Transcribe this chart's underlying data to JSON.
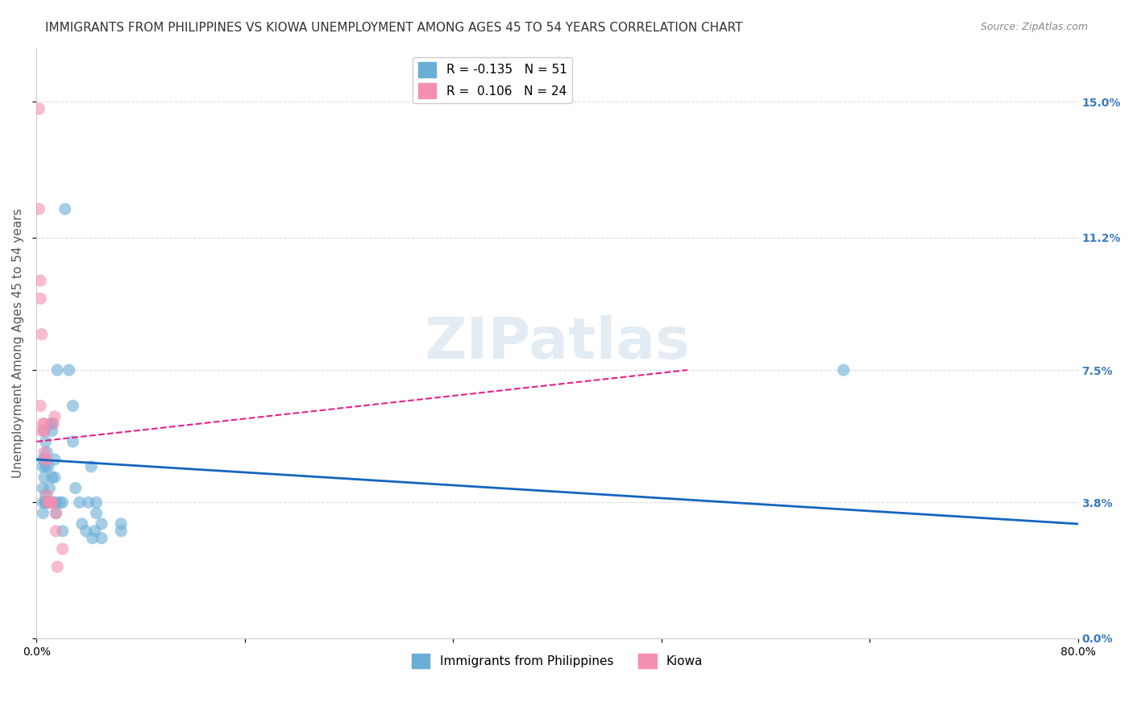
{
  "title": "IMMIGRANTS FROM PHILIPPINES VS KIOWA UNEMPLOYMENT AMONG AGES 45 TO 54 YEARS CORRELATION CHART",
  "source": "Source: ZipAtlas.com",
  "ylabel": "Unemployment Among Ages 45 to 54 years",
  "xlim": [
    0.0,
    0.8
  ],
  "ylim": [
    0.0,
    0.165
  ],
  "yticks": [
    0.0,
    0.038,
    0.075,
    0.112,
    0.15
  ],
  "ytick_labels": [
    "0.0%",
    "3.8%",
    "7.5%",
    "11.2%",
    "15.0%"
  ],
  "xticks": [
    0.0,
    0.16,
    0.32,
    0.48,
    0.64,
    0.8
  ],
  "xtick_labels": [
    "0.0%",
    "",
    "",
    "",
    "",
    "80.0%"
  ],
  "blue_scatter": [
    [
      0.005,
      0.048
    ],
    [
      0.005,
      0.038
    ],
    [
      0.005,
      0.05
    ],
    [
      0.005,
      0.042
    ],
    [
      0.005,
      0.035
    ],
    [
      0.006,
      0.058
    ],
    [
      0.006,
      0.05
    ],
    [
      0.006,
      0.045
    ],
    [
      0.007,
      0.055
    ],
    [
      0.007,
      0.048
    ],
    [
      0.007,
      0.04
    ],
    [
      0.007,
      0.038
    ],
    [
      0.007,
      0.038
    ],
    [
      0.008,
      0.052
    ],
    [
      0.008,
      0.038
    ],
    [
      0.009,
      0.048
    ],
    [
      0.009,
      0.038
    ],
    [
      0.01,
      0.042
    ],
    [
      0.01,
      0.038
    ],
    [
      0.011,
      0.06
    ],
    [
      0.012,
      0.045
    ],
    [
      0.012,
      0.06
    ],
    [
      0.012,
      0.058
    ],
    [
      0.013,
      0.038
    ],
    [
      0.014,
      0.045
    ],
    [
      0.014,
      0.05
    ],
    [
      0.015,
      0.038
    ],
    [
      0.015,
      0.035
    ],
    [
      0.016,
      0.075
    ],
    [
      0.018,
      0.038
    ],
    [
      0.02,
      0.03
    ],
    [
      0.02,
      0.038
    ],
    [
      0.022,
      0.12
    ],
    [
      0.025,
      0.075
    ],
    [
      0.028,
      0.065
    ],
    [
      0.028,
      0.055
    ],
    [
      0.03,
      0.042
    ],
    [
      0.033,
      0.038
    ],
    [
      0.035,
      0.032
    ],
    [
      0.038,
      0.03
    ],
    [
      0.04,
      0.038
    ],
    [
      0.042,
      0.048
    ],
    [
      0.043,
      0.028
    ],
    [
      0.045,
      0.03
    ],
    [
      0.046,
      0.035
    ],
    [
      0.046,
      0.038
    ],
    [
      0.05,
      0.032
    ],
    [
      0.05,
      0.028
    ],
    [
      0.065,
      0.03
    ],
    [
      0.065,
      0.032
    ],
    [
      0.62,
      0.075
    ]
  ],
  "pink_scatter": [
    [
      0.002,
      0.148
    ],
    [
      0.002,
      0.12
    ],
    [
      0.003,
      0.1
    ],
    [
      0.003,
      0.095
    ],
    [
      0.003,
      0.065
    ],
    [
      0.004,
      0.085
    ],
    [
      0.004,
      0.058
    ],
    [
      0.005,
      0.06
    ],
    [
      0.006,
      0.06
    ],
    [
      0.006,
      0.058
    ],
    [
      0.006,
      0.052
    ],
    [
      0.007,
      0.05
    ],
    [
      0.008,
      0.05
    ],
    [
      0.008,
      0.04
    ],
    [
      0.009,
      0.038
    ],
    [
      0.01,
      0.038
    ],
    [
      0.011,
      0.038
    ],
    [
      0.012,
      0.038
    ],
    [
      0.013,
      0.06
    ],
    [
      0.014,
      0.062
    ],
    [
      0.015,
      0.035
    ],
    [
      0.015,
      0.03
    ],
    [
      0.016,
      0.02
    ],
    [
      0.02,
      0.025
    ]
  ],
  "blue_line_x": [
    0.0,
    0.8
  ],
  "blue_line_y": [
    0.05,
    0.032
  ],
  "pink_line_x": [
    0.0,
    0.5
  ],
  "pink_line_y": [
    0.055,
    0.075
  ],
  "blue_color": "#6aaed6",
  "pink_color": "#f48fb1",
  "blue_line_color": "#1565c0",
  "pink_line_color": "#e91e8c",
  "watermark": "ZIPatlas",
  "grid_color": "#dddddd",
  "background_color": "#ffffff",
  "title_fontsize": 11,
  "axis_label_fontsize": 11,
  "tick_fontsize": 10,
  "right_tick_color": "#3a7abf",
  "legend1_label1": "R = -0.135   N = 51",
  "legend1_label2": "R =  0.106   N = 24",
  "legend2_label1": "Immigrants from Philippines",
  "legend2_label2": "Kiowa"
}
